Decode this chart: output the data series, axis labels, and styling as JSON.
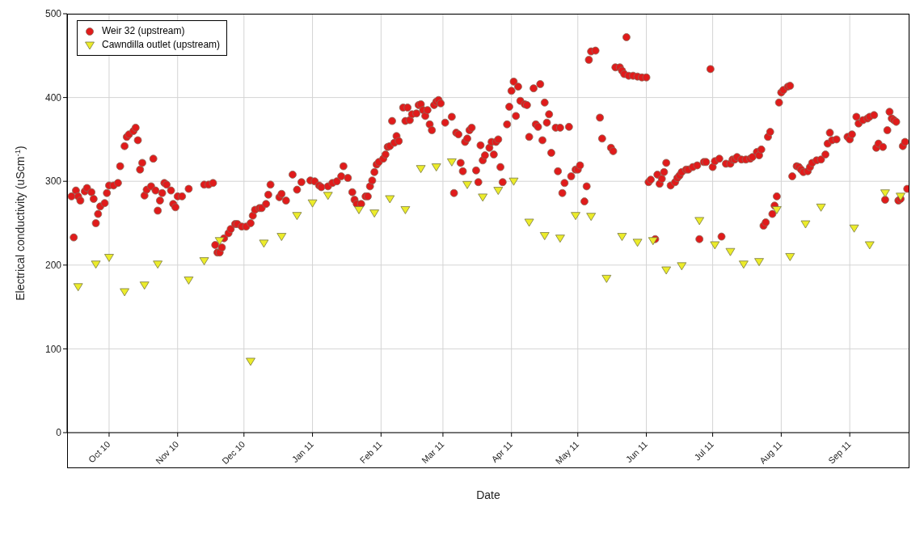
{
  "chart_data": {
    "type": "scatter",
    "xlabel": "Date",
    "ylabel": "Electrical conductivity (uScm$^{-1}$)",
    "xlim": [
      "2010-09-12",
      "2011-09-28"
    ],
    "xticks": [
      {
        "value": "2010-10-01",
        "label": "Oct 10"
      },
      {
        "value": "2010-11-01",
        "label": "Nov 10"
      },
      {
        "value": "2010-12-01",
        "label": "Dec 10"
      },
      {
        "value": "2011-01-01",
        "label": "Jan 11"
      },
      {
        "value": "2011-02-01",
        "label": "Feb 11"
      },
      {
        "value": "2011-03-01",
        "label": "Mar 11"
      },
      {
        "value": "2011-04-01",
        "label": "Apr 11"
      },
      {
        "value": "2011-05-01",
        "label": "May 11"
      },
      {
        "value": "2011-06-01",
        "label": "Jun 11"
      },
      {
        "value": "2011-07-01",
        "label": "Jul 11"
      },
      {
        "value": "2011-08-01",
        "label": "Aug 11"
      },
      {
        "value": "2011-09-01",
        "label": "Sep 11"
      }
    ],
    "ylim": [
      0,
      500
    ],
    "yticks": [
      0,
      100,
      200,
      300,
      400,
      500
    ],
    "grid": true,
    "legend": "top left",
    "series": [
      {
        "name": "Weir 32 (upstream)",
        "color": "#e01b1b",
        "marker": "circle",
        "x": [
          "2010-09-14",
          "2010-09-15",
          "2010-09-16",
          "2010-09-17",
          "2010-09-18",
          "2010-09-20",
          "2010-09-21",
          "2010-09-23",
          "2010-09-24",
          "2010-09-25",
          "2010-09-26",
          "2010-09-27",
          "2010-09-29",
          "2010-09-30",
          "2010-10-01",
          "2010-10-03",
          "2010-10-05",
          "2010-10-06",
          "2010-10-08",
          "2010-10-09",
          "2010-10-10",
          "2010-10-12",
          "2010-10-13",
          "2010-10-14",
          "2010-10-15",
          "2010-10-16",
          "2010-10-17",
          "2010-10-18",
          "2010-10-20",
          "2010-10-21",
          "2010-10-22",
          "2010-10-23",
          "2010-10-24",
          "2010-10-25",
          "2010-10-26",
          "2010-10-27",
          "2010-10-29",
          "2010-10-30",
          "2010-10-31",
          "2010-11-01",
          "2010-11-03",
          "2010-11-06",
          "2010-11-13",
          "2010-11-15",
          "2010-11-17",
          "2010-11-18",
          "2010-11-19",
          "2010-11-20",
          "2010-11-21",
          "2010-11-22",
          "2010-11-24",
          "2010-11-25",
          "2010-11-27",
          "2010-11-28",
          "2010-11-30",
          "2010-12-02",
          "2010-12-04",
          "2010-12-05",
          "2010-12-06",
          "2010-12-08",
          "2010-12-09",
          "2010-12-11",
          "2010-12-12",
          "2010-12-13",
          "2010-12-17",
          "2010-12-18",
          "2010-12-20",
          "2010-12-23",
          "2010-12-25",
          "2010-12-27",
          "2010-12-31",
          "2011-01-02",
          "2011-01-04",
          "2011-01-05",
          "2011-01-08",
          "2011-01-10",
          "2011-01-12",
          "2011-01-14",
          "2011-01-15",
          "2011-01-17",
          "2011-01-19",
          "2011-01-20",
          "2011-01-21",
          "2011-01-23",
          "2011-01-25",
          "2011-01-26",
          "2011-01-27",
          "2011-01-28",
          "2011-01-29",
          "2011-01-30",
          "2011-01-31",
          "2011-02-02",
          "2011-02-03",
          "2011-02-04",
          "2011-02-05",
          "2011-02-06",
          "2011-02-07",
          "2011-02-08",
          "2011-02-09",
          "2011-02-11",
          "2011-02-12",
          "2011-02-13",
          "2011-02-14",
          "2011-02-15",
          "2011-02-17",
          "2011-02-18",
          "2011-02-19",
          "2011-02-20",
          "2011-02-21",
          "2011-02-22",
          "2011-02-23",
          "2011-02-24",
          "2011-02-25",
          "2011-02-26",
          "2011-02-27",
          "2011-02-28",
          "2011-03-02",
          "2011-03-05",
          "2011-03-06",
          "2011-03-07",
          "2011-03-08",
          "2011-03-09",
          "2011-03-10",
          "2011-03-11",
          "2011-03-12",
          "2011-03-13",
          "2011-03-14",
          "2011-03-16",
          "2011-03-17",
          "2011-03-18",
          "2011-03-19",
          "2011-03-20",
          "2011-03-22",
          "2011-03-23",
          "2011-03-24",
          "2011-03-25",
          "2011-03-26",
          "2011-03-27",
          "2011-03-28",
          "2011-03-30",
          "2011-03-31",
          "2011-04-01",
          "2011-04-02",
          "2011-04-03",
          "2011-04-04",
          "2011-04-05",
          "2011-04-07",
          "2011-04-08",
          "2011-04-09",
          "2011-04-11",
          "2011-04-12",
          "2011-04-13",
          "2011-04-14",
          "2011-04-15",
          "2011-04-16",
          "2011-04-17",
          "2011-04-18",
          "2011-04-19",
          "2011-04-21",
          "2011-04-22",
          "2011-04-23",
          "2011-04-24",
          "2011-04-25",
          "2011-04-27",
          "2011-04-28",
          "2011-04-30",
          "2011-05-01",
          "2011-05-02",
          "2011-05-04",
          "2011-05-05",
          "2011-05-06",
          "2011-05-07",
          "2011-05-09",
          "2011-05-11",
          "2011-05-12",
          "2011-05-16",
          "2011-05-17",
          "2011-05-18",
          "2011-05-20",
          "2011-05-21",
          "2011-05-22",
          "2011-05-23",
          "2011-05-24",
          "2011-05-26",
          "2011-05-28",
          "2011-05-30",
          "2011-06-01",
          "2011-06-02",
          "2011-06-03",
          "2011-06-05",
          "2011-06-06",
          "2011-06-07",
          "2011-06-08",
          "2011-06-09",
          "2011-06-10",
          "2011-06-12",
          "2011-06-14",
          "2011-06-15",
          "2011-06-16",
          "2011-06-17",
          "2011-06-19",
          "2011-06-20",
          "2011-06-22",
          "2011-06-24",
          "2011-06-25",
          "2011-06-27",
          "2011-06-28",
          "2011-06-30",
          "2011-07-01",
          "2011-07-02",
          "2011-07-04",
          "2011-07-05",
          "2011-07-07",
          "2011-07-09",
          "2011-07-10",
          "2011-07-11",
          "2011-07-12",
          "2011-07-14",
          "2011-07-16",
          "2011-07-18",
          "2011-07-19",
          "2011-07-21",
          "2011-07-22",
          "2011-07-23",
          "2011-07-24",
          "2011-07-25",
          "2011-07-26",
          "2011-07-27",
          "2011-07-28",
          "2011-07-29",
          "2011-07-30",
          "2011-07-31",
          "2011-08-01",
          "2011-08-02",
          "2011-08-04",
          "2011-08-05",
          "2011-08-06",
          "2011-08-08",
          "2011-08-09",
          "2011-08-10",
          "2011-08-11",
          "2011-08-13",
          "2011-08-14",
          "2011-08-15",
          "2011-08-17",
          "2011-08-19",
          "2011-08-21",
          "2011-08-22",
          "2011-08-23",
          "2011-08-24",
          "2011-08-26",
          "2011-08-31",
          "2011-09-01",
          "2011-09-02",
          "2011-09-04",
          "2011-09-05",
          "2011-09-07",
          "2011-09-09",
          "2011-09-10",
          "2011-09-12",
          "2011-09-13",
          "2011-09-14",
          "2011-09-16",
          "2011-09-17",
          "2011-09-18",
          "2011-09-19",
          "2011-09-20",
          "2011-09-21",
          "2011-09-22",
          "2011-09-23",
          "2011-09-24",
          "2011-09-25",
          "2011-09-26",
          "2011-09-27"
        ],
        "values": [
          282,
          233,
          289,
          282,
          277,
          288,
          292,
          287,
          279,
          250,
          261,
          270,
          274,
          286,
          295,
          295,
          298,
          318,
          342,
          353,
          356,
          360,
          364,
          349,
          314,
          322,
          283,
          290,
          294,
          327,
          289,
          265,
          277,
          286,
          298,
          296,
          289,
          273,
          269,
          282,
          282,
          291,
          296,
          296,
          298,
          224,
          215,
          215,
          221,
          232,
          238,
          243,
          249,
          249,
          246,
          246,
          250,
          259,
          266,
          268,
          268,
          273,
          284,
          296,
          281,
          285,
          277,
          308,
          290,
          299,
          301,
          300,
          295,
          293,
          294,
          298,
          300,
          306,
          318,
          304,
          287,
          278,
          273,
          273,
          282,
          282,
          294,
          301,
          311,
          320,
          323,
          327,
          332,
          341,
          342,
          372,
          346,
          354,
          348,
          388,
          372,
          388,
          373,
          380,
          381,
          391,
          392,
          385,
          378,
          385,
          368,
          361,
          391,
          395,
          397,
          393,
          370,
          377,
          286,
          358,
          356,
          322,
          312,
          347,
          351,
          361,
          364,
          313,
          299,
          343,
          325,
          331,
          340,
          347,
          332,
          347,
          350,
          317,
          299,
          368,
          389,
          408,
          419,
          378,
          413,
          396,
          392,
          391,
          353,
          411,
          368,
          365,
          416,
          349,
          394,
          370,
          380,
          334,
          364,
          312,
          364,
          286,
          298,
          365,
          306,
          314,
          314,
          319,
          276,
          294,
          445,
          455,
          456,
          376,
          351,
          340,
          336,
          436,
          436,
          432,
          428,
          472,
          426,
          426,
          425,
          424,
          424,
          299,
          302,
          231,
          308,
          297,
          303,
          311,
          322,
          295,
          299,
          304,
          307,
          311,
          314,
          314,
          317,
          319,
          231,
          323,
          323,
          434,
          317,
          324,
          327,
          234,
          321,
          321,
          326,
          326,
          329,
          326,
          326,
          327,
          329,
          335,
          331,
          338,
          247,
          251,
          353,
          359,
          261,
          271,
          282,
          394,
          406,
          409,
          413,
          414,
          306,
          318,
          317,
          314,
          311,
          312,
          317,
          322,
          325,
          326,
          332,
          345,
          358,
          349,
          350,
          353,
          350,
          356,
          377,
          369,
          373,
          375,
          377,
          379,
          340,
          345,
          341,
          278,
          361,
          383,
          375,
          373,
          371,
          277,
          279,
          342,
          347,
          291
        ]
      },
      {
        "name": "Cawndilla outlet (upstream)",
        "color": "#ecec2a",
        "marker": "triangle",
        "x": [
          "2010-09-17",
          "2010-09-25",
          "2010-10-01",
          "2010-10-08",
          "2010-10-17",
          "2010-10-23",
          "2010-11-06",
          "2010-11-13",
          "2010-11-20",
          "2010-12-04",
          "2010-12-10",
          "2010-12-18",
          "2010-12-25",
          "2011-01-01",
          "2011-01-08",
          "2011-01-22",
          "2011-01-29",
          "2011-02-05",
          "2011-02-12",
          "2011-02-19",
          "2011-02-26",
          "2011-03-05",
          "2011-03-12",
          "2011-03-19",
          "2011-03-26",
          "2011-04-02",
          "2011-04-09",
          "2011-04-16",
          "2011-04-23",
          "2011-04-30",
          "2011-05-07",
          "2011-05-14",
          "2011-05-21",
          "2011-05-28",
          "2011-06-04",
          "2011-06-10",
          "2011-06-17",
          "2011-06-25",
          "2011-07-02",
          "2011-07-09",
          "2011-07-15",
          "2011-07-22",
          "2011-07-30",
          "2011-08-05",
          "2011-08-12",
          "2011-08-19",
          "2011-09-03",
          "2011-09-10",
          "2011-09-17",
          "2011-09-24"
        ],
        "values": [
          174,
          201,
          209,
          168,
          176,
          201,
          182,
          205,
          229,
          85,
          226,
          234,
          259,
          274,
          283,
          266,
          262,
          279,
          266,
          315,
          317,
          323,
          296,
          281,
          289,
          300,
          251,
          235,
          232,
          259,
          258,
          184,
          234,
          227,
          229,
          194,
          199,
          253,
          224,
          216,
          201,
          204,
          266,
          210,
          249,
          269,
          244,
          224,
          286,
          282
        ]
      }
    ]
  }
}
